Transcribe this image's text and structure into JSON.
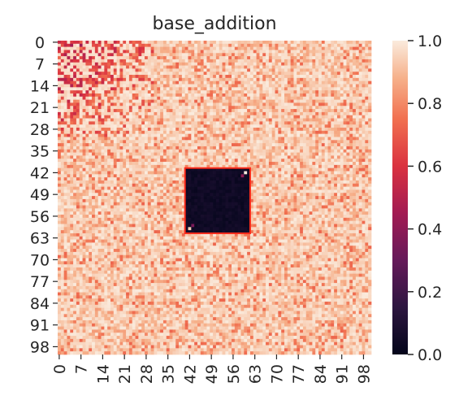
{
  "chart_data": {
    "type": "heatmap",
    "title": "base_addition",
    "xlabel": "",
    "ylabel": "",
    "rows": 101,
    "cols": 101,
    "x_tick_labels": [
      "0",
      "7",
      "14",
      "21",
      "28",
      "35",
      "42",
      "49",
      "56",
      "63",
      "70",
      "77",
      "84",
      "91",
      "98"
    ],
    "y_tick_labels": [
      "0",
      "7",
      "14",
      "21",
      "28",
      "35",
      "42",
      "49",
      "56",
      "63",
      "70",
      "77",
      "84",
      "91",
      "98"
    ],
    "x_tick_indices": [
      0,
      7,
      14,
      21,
      28,
      35,
      42,
      49,
      56,
      63,
      70,
      77,
      84,
      91,
      98
    ],
    "y_tick_indices": [
      0,
      7,
      14,
      21,
      28,
      35,
      42,
      49,
      56,
      63,
      70,
      77,
      84,
      91,
      98
    ],
    "value_range": [
      0.0,
      1.0
    ],
    "colormap": "rocket",
    "colorbar": {
      "ticks": [
        0.0,
        0.2,
        0.4,
        0.6,
        0.8,
        1.0
      ],
      "tick_labels": [
        "0.0",
        "0.2",
        "0.4",
        "0.6",
        "0.8",
        "1.0"
      ]
    },
    "background_level": 0.9,
    "top_left_region": {
      "row_end": 30,
      "col_end": 30,
      "level": 0.7
    },
    "low_block": {
      "row_start": 41,
      "row_end": 61,
      "col_start": 41,
      "col_end": 61,
      "value": 0.0
    },
    "highlight_box": {
      "row_start": 41,
      "row_end": 61,
      "col_start": 41,
      "col_end": 61,
      "color": "#ff2a1a"
    }
  }
}
